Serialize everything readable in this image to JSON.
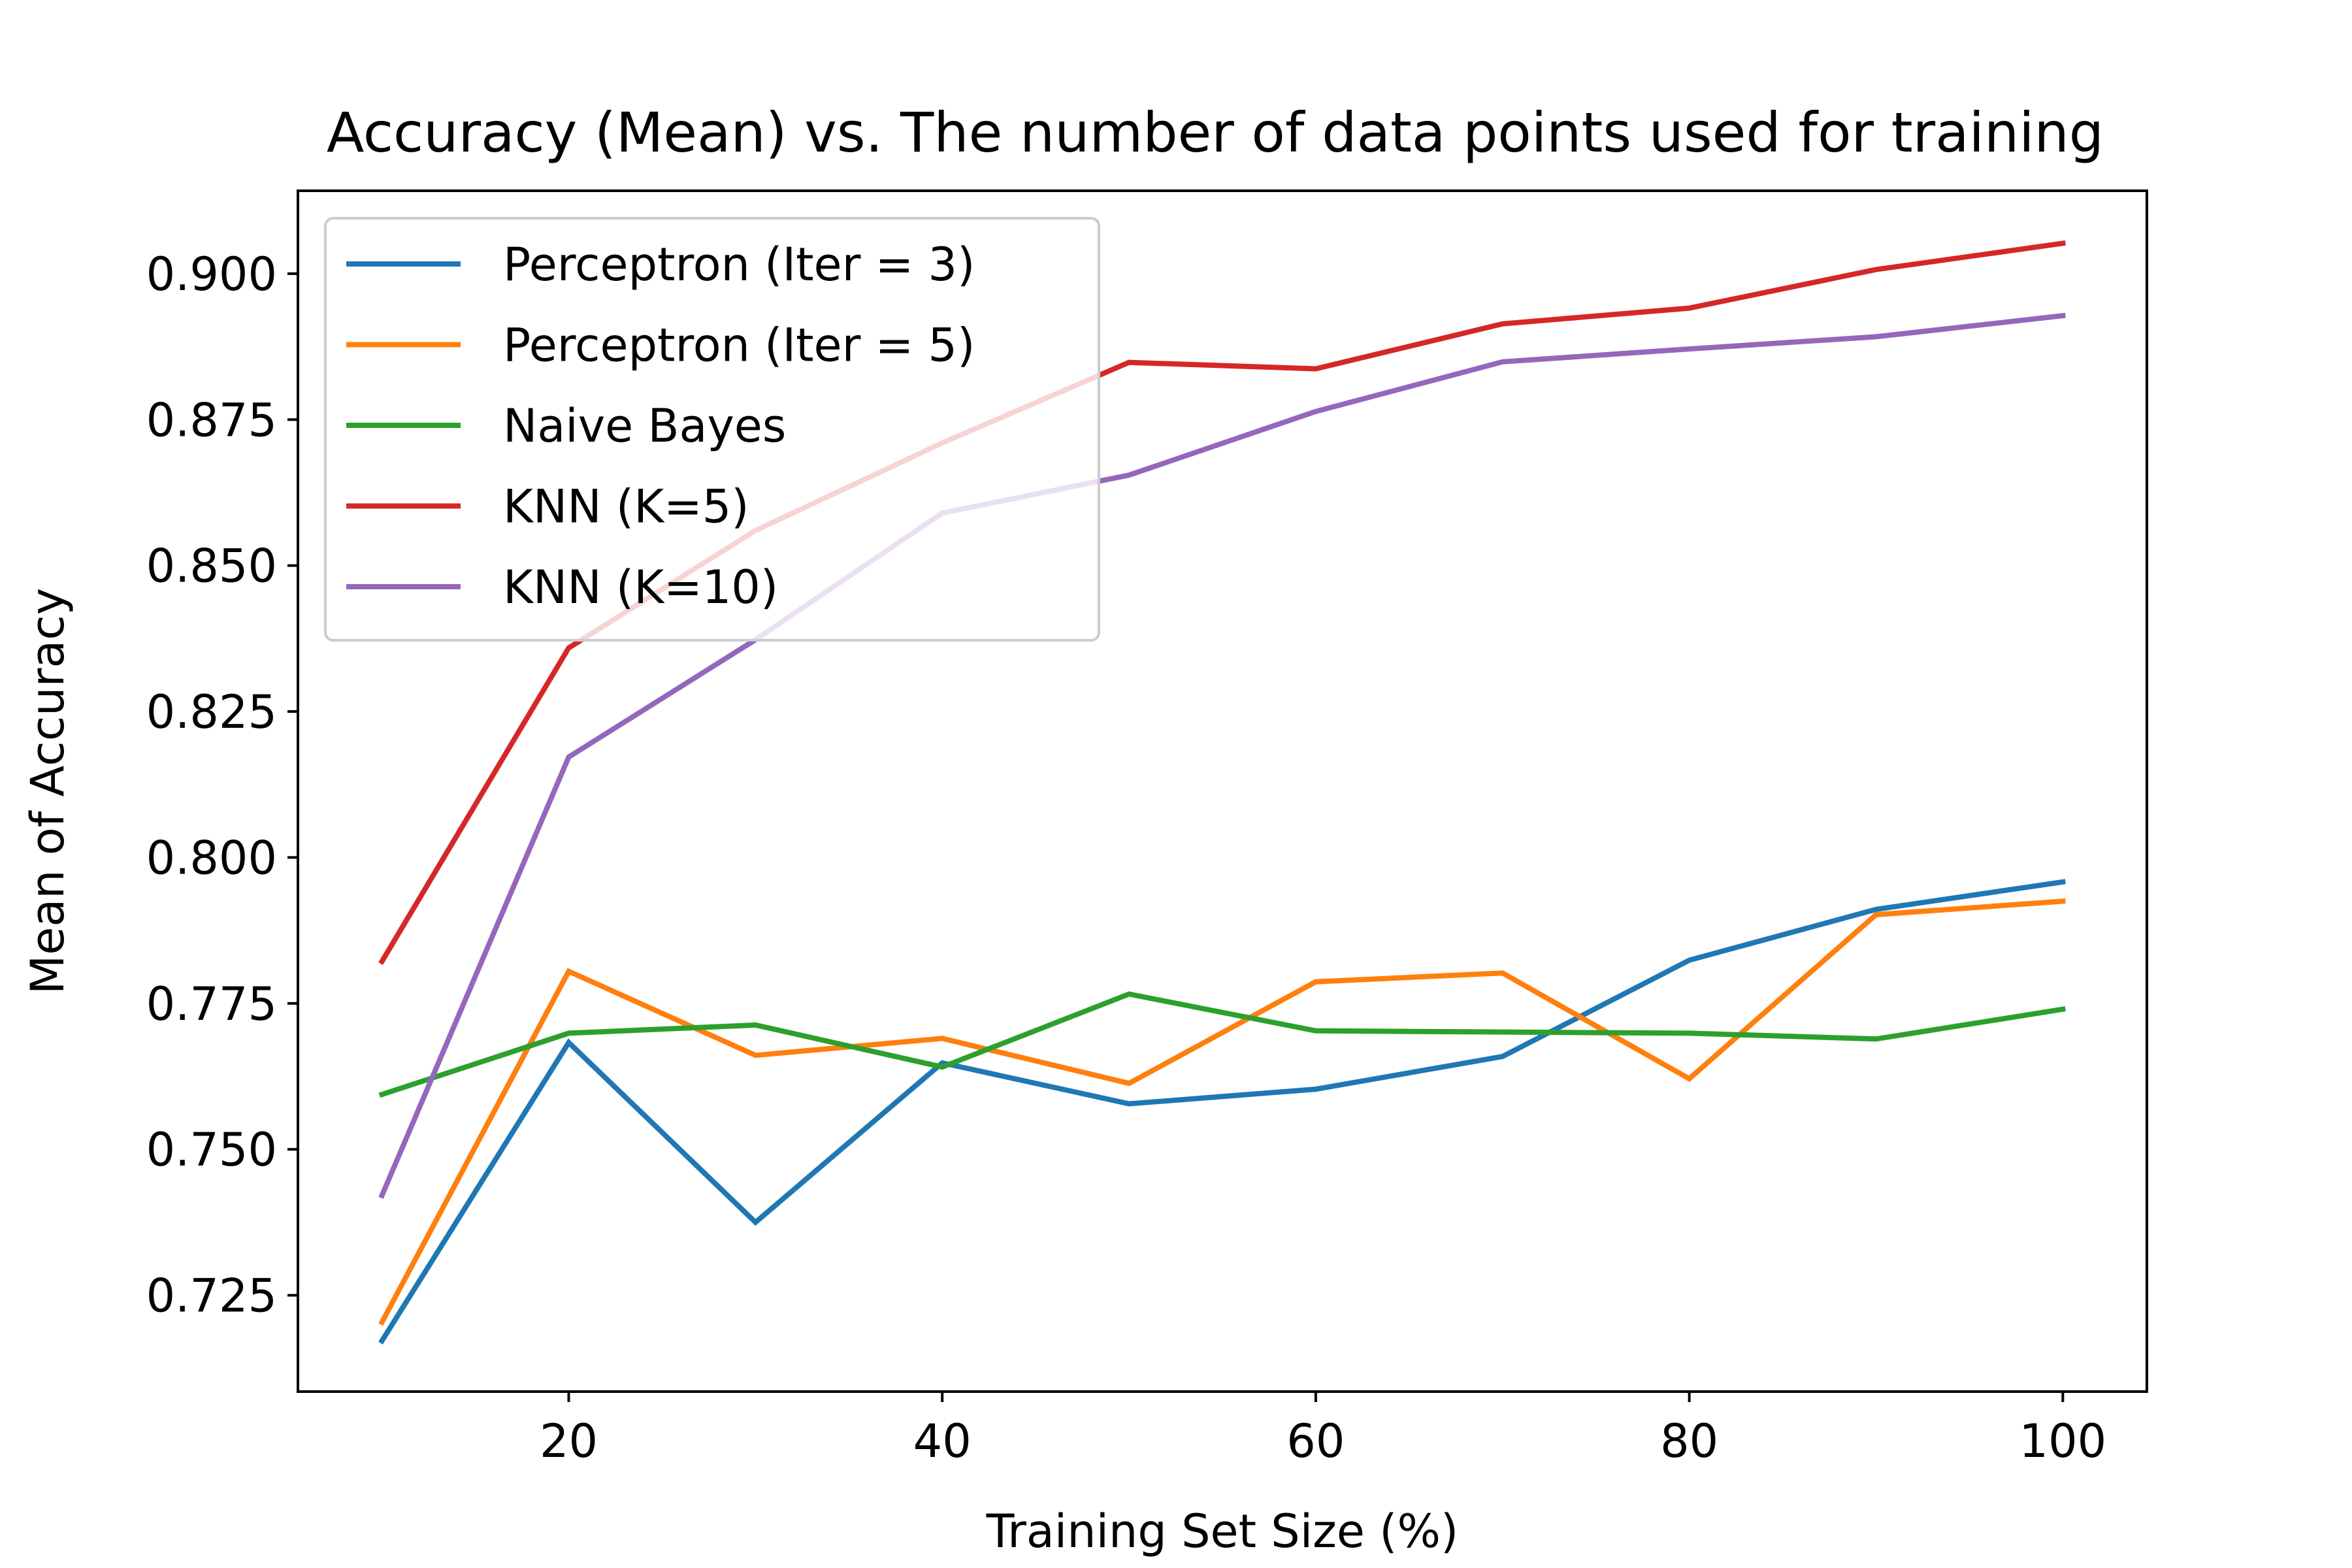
{
  "chart_data": {
    "type": "line",
    "title": "Accuracy (Mean) vs. The number of data points used for training",
    "xlabel": "Training Set Size (%)",
    "ylabel": "Mean of Accuracy",
    "xlim": [
      5.5,
      104.5
    ],
    "ylim": [
      0.7085,
      0.9142
    ],
    "x_ticks": [
      20,
      40,
      60,
      80,
      100
    ],
    "x_tick_labels": [
      "20",
      "40",
      "60",
      "80",
      "100"
    ],
    "y_ticks": [
      0.725,
      0.75,
      0.775,
      0.8,
      0.825,
      0.85,
      0.875,
      0.9
    ],
    "y_tick_labels": [
      "0.725",
      "0.750",
      "0.775",
      "0.800",
      "0.825",
      "0.850",
      "0.875",
      "0.900"
    ],
    "grid": false,
    "legend_position": "upper-left",
    "x": [
      10,
      20,
      30,
      40,
      50,
      60,
      70,
      80,
      90,
      100
    ],
    "series": [
      {
        "name": "Perceptron (Iter = 3)",
        "color": "#1f77b4",
        "values": [
          0.7172,
          0.7683,
          0.7375,
          0.7648,
          0.7578,
          0.7603,
          0.7659,
          0.7824,
          0.7911,
          0.7958
        ]
      },
      {
        "name": "Perceptron (Iter = 5)",
        "color": "#ff7f0e",
        "values": [
          0.7204,
          0.7805,
          0.7661,
          0.769,
          0.7613,
          0.7787,
          0.7802,
          0.7621,
          0.7902,
          0.7925
        ]
      },
      {
        "name": "Naive Bayes",
        "color": "#2ca02c",
        "values": [
          0.7594,
          0.7699,
          0.7713,
          0.7641,
          0.7766,
          0.7703,
          0.7701,
          0.7699,
          0.7689,
          0.774
        ]
      },
      {
        "name": "KNN (K=5)",
        "color": "#d62728",
        "values": [
          0.7822,
          0.8359,
          0.856,
          0.871,
          0.8848,
          0.8837,
          0.8914,
          0.8941,
          0.9007,
          0.9052
        ]
      },
      {
        "name": "KNN (K=10)",
        "color": "#9467bd",
        "values": [
          0.7421,
          0.8172,
          0.8373,
          0.859,
          0.8655,
          0.8764,
          0.8849,
          0.8871,
          0.8892,
          0.8928
        ]
      }
    ]
  }
}
